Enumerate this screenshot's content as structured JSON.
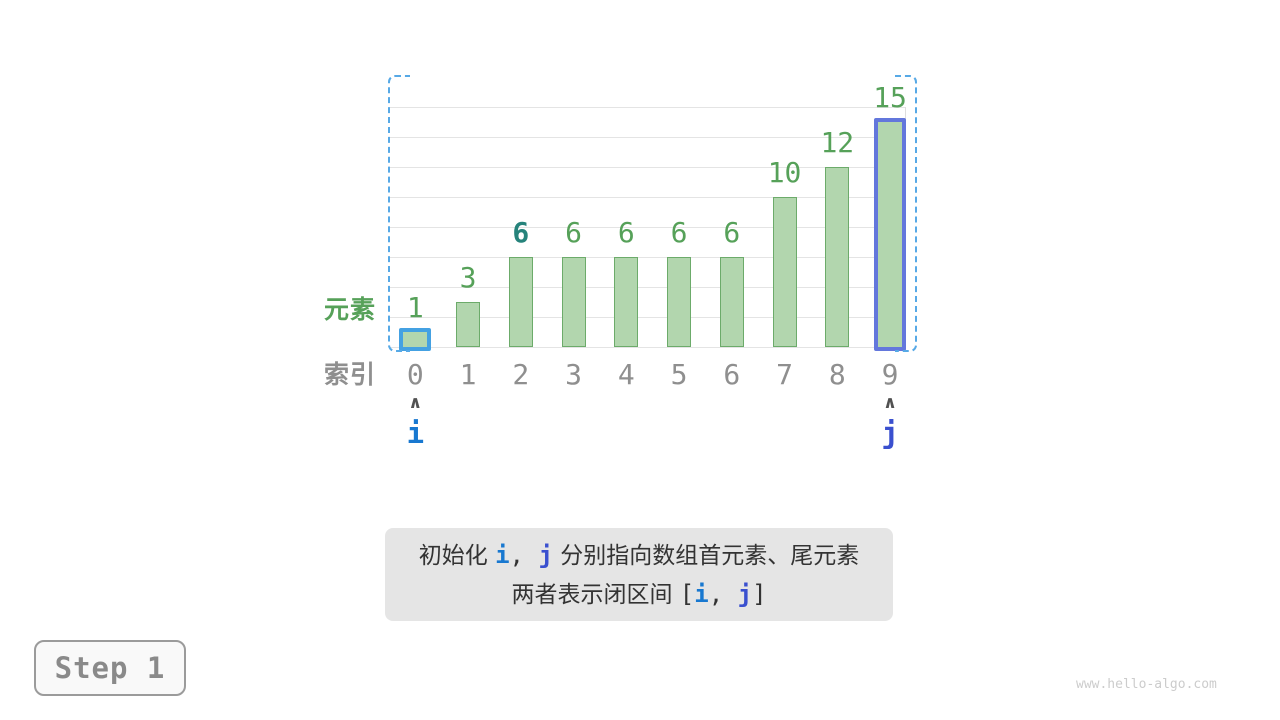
{
  "colors": {
    "bar_fill": "#b2d6ae",
    "bar_border": "#6cab6a",
    "value_green": "#56a159",
    "value_teal": "#26837b",
    "index_gray": "#8f8f8f",
    "axis_green": "#56a159",
    "grid": "#e4e4e4",
    "plot_border": "#dedede",
    "bracket_blue": "#57a9e6",
    "highlight_left": "#44a1e2",
    "highlight_right": "#6377dc",
    "pointer_i": "#1878d0",
    "pointer_j": "#3a50cf",
    "caret": "#515151",
    "caption_bg": "#e5e5e5",
    "caption_text": "#333333",
    "step_text": "#8a8a8a",
    "step_border": "#9b9b9b",
    "watermark": "#cccccc"
  },
  "chart_data": {
    "type": "bar",
    "title": "",
    "categories": [
      "0",
      "1",
      "2",
      "3",
      "4",
      "5",
      "6",
      "7",
      "8",
      "9"
    ],
    "values": [
      1,
      3,
      6,
      6,
      6,
      6,
      6,
      10,
      12,
      15
    ],
    "ylim": [
      0,
      16
    ],
    "grid_step": 2,
    "grid": true,
    "legend": false
  },
  "chart": {
    "element_axis_label": "元素",
    "index_axis_label": "索引",
    "emphasized_value_index": 2,
    "highlighted_bars": [
      {
        "index": 0,
        "color_key": "highlight_left"
      },
      {
        "index": 9,
        "color_key": "highlight_right"
      }
    ],
    "pointers": [
      {
        "label": "i",
        "index": 0,
        "color_key": "pointer_i"
      },
      {
        "label": "j",
        "index": 9,
        "color_key": "pointer_j"
      }
    ],
    "caret_glyph": "∧"
  },
  "caption": {
    "lines": [
      [
        {
          "t": "初始化 "
        },
        {
          "t": "i",
          "m": 1,
          "k": "pointer_i"
        },
        {
          "t": ", ",
          "m": 1
        },
        {
          "t": "j",
          "m": 1,
          "k": "pointer_j"
        },
        {
          "t": " 分别指向数组首元素、尾元素"
        }
      ],
      [
        {
          "t": "两者表示闭区间 "
        },
        {
          "t": "[",
          "m": 1
        },
        {
          "t": "i",
          "m": 1,
          "k": "pointer_i"
        },
        {
          "t": ", ",
          "m": 1
        },
        {
          "t": "j",
          "m": 1,
          "k": "pointer_j"
        },
        {
          "t": "]",
          "m": 1
        }
      ]
    ]
  },
  "step_badge": {
    "label": "Step 1"
  },
  "watermark": "www.hello-algo.com"
}
